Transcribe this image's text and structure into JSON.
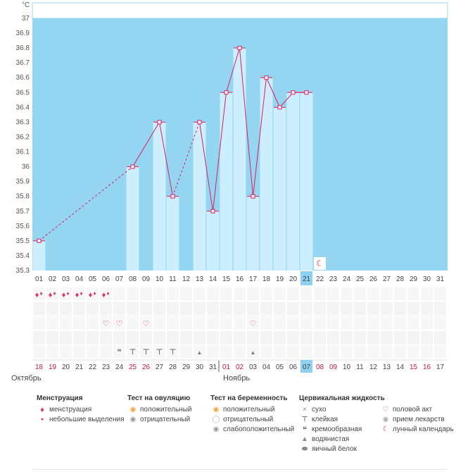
{
  "chart_data": {
    "type": "bar+line",
    "title": "",
    "ylabel": "°C",
    "ylim": [
      35.3,
      37
    ],
    "y_ticks": [
      "37",
      "36.9",
      "36.8",
      "36.7",
      "36.6",
      "36.5",
      "36.4",
      "36.3",
      "36.2",
      "36.1",
      "36",
      "35.9",
      "35.8",
      "35.7",
      "35.6",
      "35.5",
      "35.4",
      "35.3"
    ],
    "cycle_days": [
      "01",
      "02",
      "03",
      "04",
      "05",
      "06",
      "07",
      "08",
      "09",
      "10",
      "11",
      "12",
      "13",
      "14",
      "15",
      "16",
      "17",
      "18",
      "19",
      "20",
      "21",
      "22",
      "23",
      "24",
      "25",
      "26",
      "27",
      "28",
      "29",
      "30",
      "31"
    ],
    "current_day": "21",
    "temperatures": [
      {
        "day": 1,
        "value": 35.5
      },
      {
        "day": 8,
        "value": 36.0
      },
      {
        "day": 10,
        "value": 36.3
      },
      {
        "day": 11,
        "value": 35.8
      },
      {
        "day": 13,
        "value": 36.3
      },
      {
        "day": 14,
        "value": 35.7
      },
      {
        "day": 15,
        "value": 36.5
      },
      {
        "day": 16,
        "value": 36.8
      },
      {
        "day": 17,
        "value": 35.8
      },
      {
        "day": 18,
        "value": 36.6
      },
      {
        "day": 19,
        "value": 36.4
      },
      {
        "day": 20,
        "value": 36.5
      },
      {
        "day": 21,
        "value": 36.5
      }
    ],
    "bar_days": [
      1,
      8,
      10,
      11,
      13,
      14,
      15,
      16,
      17,
      18,
      19,
      20,
      21
    ],
    "interpolated_segments": [
      [
        1,
        8
      ],
      [
        11,
        13
      ]
    ],
    "lunar_marker_day": 22,
    "menstruation_days": [
      1,
      2,
      3,
      4,
      5,
      6
    ],
    "sex_days": [
      6,
      7,
      9,
      17
    ],
    "cervical_fluid": [
      {
        "day": 7,
        "type": "creamy"
      },
      {
        "day": 8,
        "type": "sticky"
      },
      {
        "day": 9,
        "type": "sticky"
      },
      {
        "day": 10,
        "type": "sticky"
      },
      {
        "day": 11,
        "type": "sticky"
      },
      {
        "day": 13,
        "type": "watery"
      },
      {
        "day": 17,
        "type": "watery"
      }
    ],
    "calendar_dates": [
      "18",
      "19",
      "20",
      "21",
      "22",
      "23",
      "24",
      "25",
      "26",
      "27",
      "28",
      "29",
      "30",
      "31",
      "01",
      "02",
      "03",
      "04",
      "05",
      "06",
      "07",
      "08",
      "09",
      "10",
      "11",
      "12",
      "13",
      "14",
      "15",
      "16",
      "17"
    ],
    "weekend_dates": [
      1,
      2,
      8,
      9,
      15,
      16,
      22,
      23,
      29,
      30
    ],
    "month_split_index": 14,
    "months": [
      "Октябрь",
      "Ноябрь"
    ]
  },
  "colors": {
    "sky": "#94d5f1",
    "bar": "#cdeefc",
    "line": "#dd1d5e",
    "weekend": "#d01352",
    "highlight": "#8dd0ef"
  },
  "legend": {
    "menstruation": {
      "title": "Менструация",
      "items": [
        "менструация",
        "небольшие выделения"
      ]
    },
    "ovulation": {
      "title": "Тест на овуляцию",
      "items": [
        "положительный",
        "отрицательный"
      ]
    },
    "pregnancy": {
      "title": "Тест на беременность",
      "items": [
        "положительный",
        "отрицательный",
        "слабоположительный"
      ]
    },
    "cervical": {
      "title": "Цервикальная жидкость",
      "items": [
        "сухо",
        "клейкая",
        "кремообразная",
        "водянистая",
        "яичный белок"
      ]
    },
    "other": {
      "items": [
        "половой акт",
        "прием лекарств",
        "лунный календарь"
      ]
    }
  }
}
